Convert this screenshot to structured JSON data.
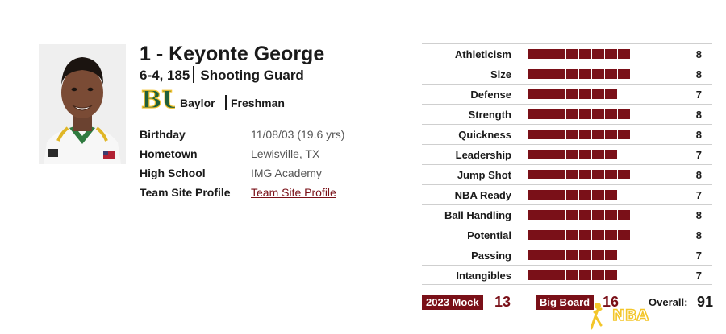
{
  "player": {
    "title": "1 - Keyonte George",
    "height_weight": "6-4, 185",
    "position": "Shooting Guard",
    "school": "Baylor",
    "class": "Freshman",
    "school_logo_text": "BU"
  },
  "info": [
    {
      "label": "Birthday",
      "value": "11/08/03 (19.6 yrs)"
    },
    {
      "label": "Hometown",
      "value": "Lewisville, TX"
    },
    {
      "label": "High School",
      "value": "IMG Academy"
    },
    {
      "label": "Team Site Profile",
      "value": "Team Site Profile"
    }
  ],
  "ratings": [
    {
      "label": "Athleticism",
      "value": 8
    },
    {
      "label": "Size",
      "value": 8
    },
    {
      "label": "Defense",
      "value": 7
    },
    {
      "label": "Strength",
      "value": 8
    },
    {
      "label": "Quickness",
      "value": 8
    },
    {
      "label": "Leadership",
      "value": 7
    },
    {
      "label": "Jump Shot",
      "value": 8
    },
    {
      "label": "NBA Ready",
      "value": 7
    },
    {
      "label": "Ball Handling",
      "value": 8
    },
    {
      "label": "Potential",
      "value": 8
    },
    {
      "label": "Passing",
      "value": 7
    },
    {
      "label": "Intangibles",
      "value": 7
    }
  ],
  "summary": {
    "mock_label": "2023 Mock",
    "mock_value": "13",
    "board_label": "Big Board",
    "board_value": "16",
    "overall_label": "Overall:",
    "overall_value": "91"
  },
  "watermark_text": "NBA",
  "colors": {
    "accent": "#7a1018",
    "school_green": "#1f5f3a",
    "school_gold": "#f2c230",
    "watermark": "#f3c62b"
  }
}
